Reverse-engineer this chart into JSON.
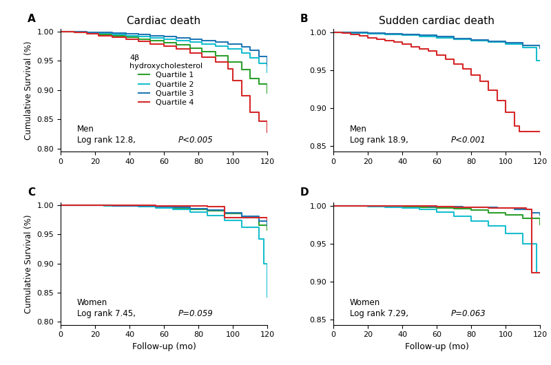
{
  "colors": {
    "q1": "#2ca02c",
    "q2": "#17becf",
    "q3": "#1f77b4",
    "q4": "#d62728"
  },
  "panel_titles": [
    "Cardiac death",
    "Sudden cardiac death"
  ],
  "panel_labels": [
    "A",
    "B",
    "C",
    "D"
  ],
  "xlabel": "Follow-up (mo)",
  "ylabel": "Cumulative Survival (%)",
  "legend_title": "4β\nhydroxycholesterol",
  "legend_labels": [
    "Quartile 1",
    "Quartile 2",
    "Quartile 3",
    "Quartile 4"
  ],
  "annotations": [
    {
      "sex": "Men",
      "stat": "Log rank 12.8,",
      "pval": "P<0.005"
    },
    {
      "sex": "Men",
      "stat": "Log rank 18.9,",
      "pval": "P<0.001"
    },
    {
      "sex": "Women",
      "stat": "Log rank 7.45,",
      "pval": "P=0.059"
    },
    {
      "sex": "Women",
      "stat": "Log rank 7.29,",
      "pval": "P=0.063"
    }
  ],
  "panel_A": {
    "ylim": [
      0.795,
      1.004
    ],
    "yticks": [
      0.8,
      0.85,
      0.9,
      0.95,
      1.0
    ],
    "curves": {
      "q1": {
        "x": [
          0,
          8,
          15,
          22,
          30,
          38,
          45,
          52,
          60,
          67,
          75,
          82,
          90,
          97,
          105,
          110,
          115,
          120
        ],
        "y": [
          1.0,
          0.999,
          0.997,
          0.995,
          0.993,
          0.99,
          0.987,
          0.984,
          0.981,
          0.977,
          0.972,
          0.966,
          0.958,
          0.948,
          0.935,
          0.92,
          0.91,
          0.895
        ]
      },
      "q2": {
        "x": [
          0,
          8,
          15,
          22,
          30,
          38,
          45,
          52,
          60,
          67,
          75,
          82,
          90,
          97,
          105,
          110,
          115,
          120
        ],
        "y": [
          1.0,
          1.0,
          0.999,
          0.997,
          0.995,
          0.993,
          0.991,
          0.989,
          0.987,
          0.985,
          0.982,
          0.979,
          0.975,
          0.97,
          0.963,
          0.955,
          0.945,
          0.93
        ]
      },
      "q3": {
        "x": [
          0,
          8,
          15,
          22,
          30,
          38,
          45,
          52,
          60,
          67,
          75,
          82,
          90,
          97,
          105,
          110,
          115,
          120
        ],
        "y": [
          1.0,
          1.0,
          0.999,
          0.998,
          0.997,
          0.996,
          0.995,
          0.993,
          0.991,
          0.989,
          0.987,
          0.985,
          0.982,
          0.979,
          0.974,
          0.968,
          0.957,
          0.942
        ]
      },
      "q4": {
        "x": [
          0,
          8,
          15,
          22,
          30,
          38,
          45,
          52,
          60,
          67,
          75,
          82,
          90,
          97,
          100,
          105,
          110,
          115,
          120
        ],
        "y": [
          1.0,
          0.998,
          0.996,
          0.993,
          0.99,
          0.987,
          0.983,
          0.979,
          0.975,
          0.97,
          0.963,
          0.956,
          0.948,
          0.936,
          0.916,
          0.89,
          0.862,
          0.847,
          0.828
        ]
      }
    }
  },
  "panel_B": {
    "ylim": [
      0.843,
      1.004
    ],
    "yticks": [
      0.85,
      0.9,
      0.95,
      1.0
    ],
    "curves": {
      "q1": {
        "x": [
          0,
          10,
          20,
          30,
          40,
          50,
          60,
          70,
          80,
          90,
          100,
          110,
          120
        ],
        "y": [
          1.0,
          0.999,
          0.998,
          0.997,
          0.996,
          0.995,
          0.993,
          0.991,
          0.989,
          0.987,
          0.985,
          0.983,
          0.981
        ]
      },
      "q2": {
        "x": [
          0,
          10,
          20,
          30,
          40,
          50,
          60,
          70,
          80,
          90,
          100,
          110,
          118,
          120
        ],
        "y": [
          1.0,
          0.999,
          0.998,
          0.997,
          0.996,
          0.994,
          0.993,
          0.991,
          0.989,
          0.987,
          0.984,
          0.98,
          0.963,
          0.963
        ]
      },
      "q3": {
        "x": [
          0,
          10,
          20,
          30,
          40,
          50,
          60,
          70,
          80,
          90,
          100,
          110,
          120
        ],
        "y": [
          1.0,
          1.0,
          0.999,
          0.998,
          0.997,
          0.996,
          0.994,
          0.992,
          0.99,
          0.988,
          0.986,
          0.983,
          0.979
        ]
      },
      "q4": {
        "x": [
          0,
          5,
          10,
          15,
          20,
          25,
          30,
          35,
          40,
          45,
          50,
          55,
          60,
          65,
          70,
          75,
          80,
          85,
          90,
          95,
          100,
          105,
          108,
          115,
          120
        ],
        "y": [
          1.0,
          0.999,
          0.997,
          0.995,
          0.993,
          0.991,
          0.989,
          0.987,
          0.984,
          0.981,
          0.978,
          0.975,
          0.97,
          0.964,
          0.958,
          0.952,
          0.944,
          0.935,
          0.924,
          0.91,
          0.895,
          0.876,
          0.869,
          0.869,
          0.869
        ]
      }
    }
  },
  "panel_C": {
    "ylim": [
      0.795,
      1.004
    ],
    "yticks": [
      0.8,
      0.85,
      0.9,
      0.95,
      1.0
    ],
    "curves": {
      "q1": {
        "x": [
          0,
          15,
          30,
          45,
          55,
          65,
          75,
          85,
          95,
          105,
          115,
          120
        ],
        "y": [
          1.0,
          1.0,
          0.999,
          0.998,
          0.997,
          0.995,
          0.993,
          0.99,
          0.985,
          0.978,
          0.966,
          0.957
        ]
      },
      "q2": {
        "x": [
          0,
          15,
          25,
          35,
          45,
          55,
          65,
          75,
          85,
          95,
          105,
          115,
          118,
          120
        ],
        "y": [
          1.0,
          1.0,
          0.999,
          0.998,
          0.997,
          0.995,
          0.992,
          0.988,
          0.982,
          0.974,
          0.962,
          0.942,
          0.9,
          0.843
        ]
      },
      "q3": {
        "x": [
          0,
          15,
          30,
          45,
          55,
          65,
          75,
          85,
          95,
          105,
          115,
          120
        ],
        "y": [
          1.0,
          1.0,
          0.999,
          0.998,
          0.997,
          0.996,
          0.994,
          0.991,
          0.987,
          0.981,
          0.972,
          0.965
        ]
      },
      "q4": {
        "x": [
          0,
          20,
          40,
          55,
          65,
          75,
          85,
          95,
          100,
          105,
          110,
          120
        ],
        "y": [
          1.0,
          1.0,
          1.0,
          0.999,
          0.999,
          0.998,
          0.997,
          0.978,
          0.978,
          0.978,
          0.978,
          0.975
        ]
      }
    }
  },
  "panel_D": {
    "ylim": [
      0.843,
      1.004
    ],
    "yticks": [
      0.85,
      0.9,
      0.95,
      1.0
    ],
    "curves": {
      "q1": {
        "x": [
          0,
          15,
          30,
          45,
          60,
          70,
          80,
          90,
          100,
          110,
          120
        ],
        "y": [
          1.0,
          1.0,
          0.999,
          0.998,
          0.997,
          0.996,
          0.994,
          0.991,
          0.988,
          0.983,
          0.975
        ]
      },
      "q2": {
        "x": [
          0,
          10,
          20,
          30,
          40,
          50,
          60,
          70,
          80,
          90,
          100,
          110,
          118,
          120
        ],
        "y": [
          1.0,
          1.0,
          0.999,
          0.998,
          0.997,
          0.995,
          0.992,
          0.986,
          0.98,
          0.973,
          0.963,
          0.95,
          0.912,
          0.912
        ]
      },
      "q3": {
        "x": [
          0,
          40,
          55,
          65,
          75,
          85,
          95,
          105,
          115,
          120
        ],
        "y": [
          1.0,
          1.0,
          0.999,
          0.999,
          0.998,
          0.998,
          0.997,
          0.995,
          0.991,
          0.988
        ]
      },
      "q4": {
        "x": [
          0,
          30,
          50,
          60,
          65,
          70,
          90,
          112,
          115,
          120
        ],
        "y": [
          1.0,
          1.0,
          1.0,
          0.999,
          0.999,
          0.998,
          0.997,
          0.995,
          0.912,
          0.912
        ]
      }
    }
  }
}
